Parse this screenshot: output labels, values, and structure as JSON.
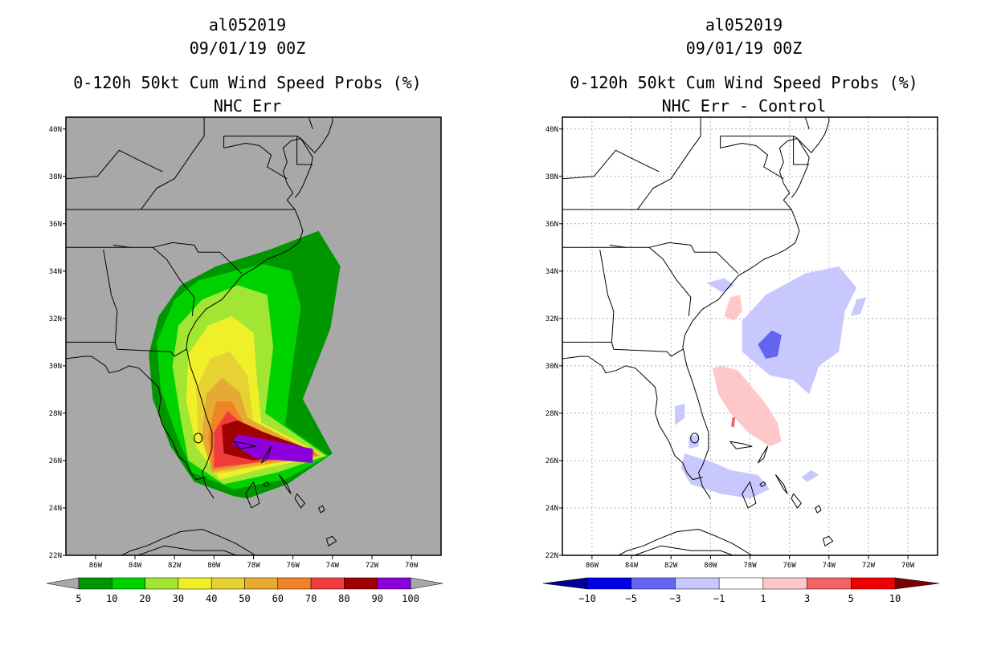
{
  "chart_data": [
    {
      "type": "heatmap",
      "title_lines": [
        "al052019",
        "09/01/19 00Z",
        "0-120h 50kt Cum Wind Speed Probs (%)",
        "NHC Err"
      ],
      "xlabel": "",
      "ylabel": "",
      "x_ticks": [
        "86W",
        "84W",
        "82W",
        "80W",
        "78W",
        "76W",
        "74W",
        "72W",
        "70W"
      ],
      "y_ticks": [
        "40N",
        "38N",
        "36N",
        "34N",
        "32N",
        "30N",
        "28N",
        "26N",
        "24N",
        "22N"
      ],
      "xlim": [
        -87.5,
        -68.5
      ],
      "ylim": [
        22,
        40.5
      ],
      "grid": false,
      "background": "#a8a8a8",
      "colorbar": {
        "labels": [
          "5",
          "10",
          "20",
          "30",
          "40",
          "50",
          "60",
          "70",
          "80",
          "90",
          "100"
        ],
        "colors": [
          "#009600",
          "#00d200",
          "#a0e632",
          "#f0f028",
          "#e6d232",
          "#e6aa32",
          "#f08228",
          "#f03c3c",
          "#a00000",
          "#8c00dc"
        ],
        "end_left": "#a8a8a8",
        "end_right": "#a8a8a8"
      },
      "contours": [
        {
          "level": 5,
          "color": "#009600",
          "points": [
            [
              -79.0,
              24.5
            ],
            [
              -81.0,
              25.1
            ],
            [
              -82.2,
              26.6
            ],
            [
              -83.1,
              28.6
            ],
            [
              -83.3,
              30.5
            ],
            [
              -82.8,
              32.1
            ],
            [
              -81.7,
              33.4
            ],
            [
              -79.9,
              34.2
            ],
            [
              -77.2,
              34.9
            ],
            [
              -74.7,
              35.7
            ],
            [
              -73.6,
              34.2
            ],
            [
              -74.1,
              31.6
            ],
            [
              -75.5,
              28.6
            ],
            [
              -74.0,
              26.3
            ],
            [
              -76.3,
              25.0
            ],
            [
              -78.3,
              24.4
            ]
          ]
        },
        {
          "level": 10,
          "color": "#00d200",
          "points": [
            [
              -79.0,
              24.8
            ],
            [
              -81.1,
              25.5
            ],
            [
              -82.0,
              27.3
            ],
            [
              -82.7,
              29.0
            ],
            [
              -82.9,
              31.0
            ],
            [
              -82.0,
              32.8
            ],
            [
              -80.8,
              33.6
            ],
            [
              -79.0,
              34.0
            ],
            [
              -77.5,
              34.3
            ],
            [
              -76.1,
              34.0
            ],
            [
              -75.6,
              32.5
            ],
            [
              -76.1,
              29.5
            ],
            [
              -76.4,
              27.5
            ],
            [
              -74.2,
              26.2
            ],
            [
              -76.4,
              25.2
            ]
          ]
        },
        {
          "level": 20,
          "color": "#a0e632",
          "points": [
            [
              -79.5,
              25.0
            ],
            [
              -81.3,
              26.0
            ],
            [
              -81.7,
              27.8
            ],
            [
              -82.1,
              30.0
            ],
            [
              -81.8,
              31.7
            ],
            [
              -80.6,
              32.8
            ],
            [
              -78.8,
              33.4
            ],
            [
              -77.3,
              33.0
            ],
            [
              -77.0,
              30.8
            ],
            [
              -77.4,
              28.0
            ],
            [
              -74.3,
              26.2
            ],
            [
              -76.8,
              25.5
            ]
          ]
        },
        {
          "level": 30,
          "color": "#f0f028",
          "points": [
            [
              -79.7,
              25.2
            ],
            [
              -80.9,
              26.6
            ],
            [
              -81.4,
              28.5
            ],
            [
              -81.3,
              30.5
            ],
            [
              -80.3,
              31.7
            ],
            [
              -79.1,
              32.1
            ],
            [
              -78.0,
              31.4
            ],
            [
              -77.8,
              29.2
            ],
            [
              -77.6,
              27.6
            ],
            [
              -74.4,
              26.2
            ],
            [
              -77.3,
              25.7
            ]
          ]
        },
        {
          "level": 40,
          "color": "#e6d232",
          "points": [
            [
              -80.0,
              25.4
            ],
            [
              -80.8,
              27.2
            ],
            [
              -80.9,
              29.0
            ],
            [
              -80.2,
              30.3
            ],
            [
              -79.2,
              30.6
            ],
            [
              -78.3,
              29.6
            ],
            [
              -78.0,
              27.6
            ],
            [
              -74.5,
              26.2
            ],
            [
              -77.5,
              25.8
            ]
          ]
        },
        {
          "level": 50,
          "color": "#e6aa32",
          "points": [
            [
              -80.1,
              25.5
            ],
            [
              -80.6,
              27.0
            ],
            [
              -80.4,
              28.8
            ],
            [
              -79.6,
              29.5
            ],
            [
              -78.7,
              28.9
            ],
            [
              -78.3,
              27.8
            ],
            [
              -74.6,
              26.2
            ],
            [
              -77.7,
              25.8
            ]
          ]
        },
        {
          "level": 60,
          "color": "#f08228",
          "points": [
            [
              -80.1,
              25.6
            ],
            [
              -80.3,
              27.0
            ],
            [
              -79.9,
              28.5
            ],
            [
              -79.1,
              28.5
            ],
            [
              -78.5,
              27.6
            ],
            [
              -74.7,
              26.2
            ],
            [
              -77.9,
              25.9
            ]
          ]
        },
        {
          "level": 70,
          "color": "#f03c3c",
          "points": [
            [
              -80.0,
              25.7
            ],
            [
              -80.0,
              27.2
            ],
            [
              -79.3,
              28.1
            ],
            [
              -78.5,
              27.5
            ],
            [
              -74.8,
              26.3
            ],
            [
              -78.0,
              25.9
            ]
          ]
        },
        {
          "level": 80,
          "color": "#a00000",
          "points": [
            [
              -79.5,
              26.3
            ],
            [
              -79.6,
              27.5
            ],
            [
              -78.8,
              27.7
            ],
            [
              -77.5,
              27.2
            ],
            [
              -74.9,
              26.4
            ],
            [
              -78.0,
              26.0
            ]
          ]
        },
        {
          "level": 90,
          "color": "#8c00dc",
          "points": [
            [
              -79.1,
              26.7
            ],
            [
              -78.8,
              27.1
            ],
            [
              -77.4,
              26.9
            ],
            [
              -75.0,
              26.5
            ],
            [
              -75.0,
              25.9
            ],
            [
              -77.9,
              26.1
            ]
          ]
        }
      ]
    },
    {
      "type": "heatmap",
      "title_lines": [
        "al052019",
        "09/01/19 00Z",
        "0-120h 50kt Cum Wind Speed Probs (%)",
        "NHC Err - Control"
      ],
      "xlabel": "",
      "ylabel": "",
      "x_ticks": [
        "86W",
        "84W",
        "82W",
        "80W",
        "78W",
        "76W",
        "74W",
        "72W",
        "70W"
      ],
      "y_ticks": [
        "40N",
        "38N",
        "36N",
        "34N",
        "32N",
        "30N",
        "28N",
        "26N",
        "24N",
        "22N"
      ],
      "xlim": [
        -87.5,
        -68.5
      ],
      "ylim": [
        22,
        40.5
      ],
      "grid": true,
      "background": "#ffffff",
      "colorbar": {
        "labels": [
          "-10",
          "-5",
          "-3",
          "-1",
          "1",
          "3",
          "5",
          "10"
        ],
        "colors": [
          "#0000e6",
          "#6464f0",
          "#c8c8ff",
          "#ffffff",
          "#ffc8c8",
          "#f06464",
          "#f00000"
        ],
        "end_left": "#000096",
        "end_right": "#780000"
      },
      "contours": [
        {
          "level": -1,
          "color": "#c8c8ff",
          "points": [
            [
              -77.2,
              33.0
            ],
            [
              -75.2,
              33.9
            ],
            [
              -73.5,
              34.2
            ],
            [
              -72.6,
              33.3
            ],
            [
              -73.2,
              32.3
            ],
            [
              -73.5,
              30.6
            ],
            [
              -74.5,
              30.0
            ],
            [
              -75.0,
              28.8
            ],
            [
              -75.8,
              29.4
            ],
            [
              -77.0,
              29.6
            ],
            [
              -78.4,
              30.6
            ],
            [
              -78.4,
              31.9
            ]
          ]
        },
        {
          "level": -1,
          "color": "#c8c8ff",
          "points": [
            [
              -72.6,
              32.8
            ],
            [
              -72.1,
              32.9
            ],
            [
              -72.4,
              32.2
            ],
            [
              -72.9,
              32.1
            ]
          ]
        },
        {
          "level": -1,
          "color": "#c8c8ff",
          "points": [
            [
              -80.2,
              33.5
            ],
            [
              -79.3,
              33.7
            ],
            [
              -78.8,
              33.4
            ],
            [
              -79.4,
              33.1
            ]
          ]
        },
        {
          "level": -1,
          "color": "#c8c8ff",
          "points": [
            [
              -81.8,
              28.3
            ],
            [
              -81.3,
              28.4
            ],
            [
              -81.3,
              27.8
            ],
            [
              -81.8,
              27.5
            ]
          ]
        },
        {
          "level": -1,
          "color": "#c8c8ff",
          "points": [
            [
              -81.3,
              26.3
            ],
            [
              -79.8,
              25.9
            ],
            [
              -79.0,
              25.6
            ],
            [
              -77.6,
              25.4
            ],
            [
              -77.0,
              24.8
            ],
            [
              -78.0,
              24.4
            ],
            [
              -79.5,
              24.6
            ],
            [
              -81.0,
              25.0
            ],
            [
              -81.5,
              25.7
            ]
          ]
        },
        {
          "level": -1,
          "color": "#c8c8ff",
          "points": [
            [
              -74.9,
              25.6
            ],
            [
              -74.5,
              25.4
            ],
            [
              -75.1,
              25.1
            ],
            [
              -75.4,
              25.3
            ]
          ]
        },
        {
          "level": -1,
          "color": "#c8c8ff",
          "points": [
            [
              -81.1,
              27.0
            ],
            [
              -80.6,
              27.1
            ],
            [
              -80.6,
              26.6
            ],
            [
              -81.1,
              26.5
            ]
          ]
        },
        {
          "level": -3,
          "color": "#6464f0",
          "points": [
            [
              -76.9,
              31.5
            ],
            [
              -76.4,
              31.3
            ],
            [
              -76.6,
              30.4
            ],
            [
              -77.2,
              30.3
            ],
            [
              -77.6,
              30.9
            ]
          ]
        },
        {
          "level": 1,
          "color": "#ffc8c8",
          "points": [
            [
              -79.9,
              29.9
            ],
            [
              -79.6,
              28.8
            ],
            [
              -79.0,
              28.0
            ],
            [
              -78.1,
              27.2
            ],
            [
              -77.0,
              26.6
            ],
            [
              -76.4,
              26.8
            ],
            [
              -76.6,
              27.6
            ],
            [
              -77.2,
              28.4
            ],
            [
              -78.0,
              29.2
            ],
            [
              -78.6,
              29.8
            ],
            [
              -79.4,
              30.0
            ]
          ]
        },
        {
          "level": 1,
          "color": "#ffc8c8",
          "points": [
            [
              -79.3,
              32.1
            ],
            [
              -79.0,
              32.9
            ],
            [
              -78.5,
              33.0
            ],
            [
              -78.4,
              32.3
            ],
            [
              -78.8,
              31.9
            ]
          ]
        },
        {
          "level": 3,
          "color": "#f06464",
          "points": [
            [
              -78.9,
              27.8
            ],
            [
              -78.75,
              27.85
            ],
            [
              -78.8,
              27.4
            ],
            [
              -78.95,
              27.45
            ]
          ]
        }
      ]
    }
  ]
}
